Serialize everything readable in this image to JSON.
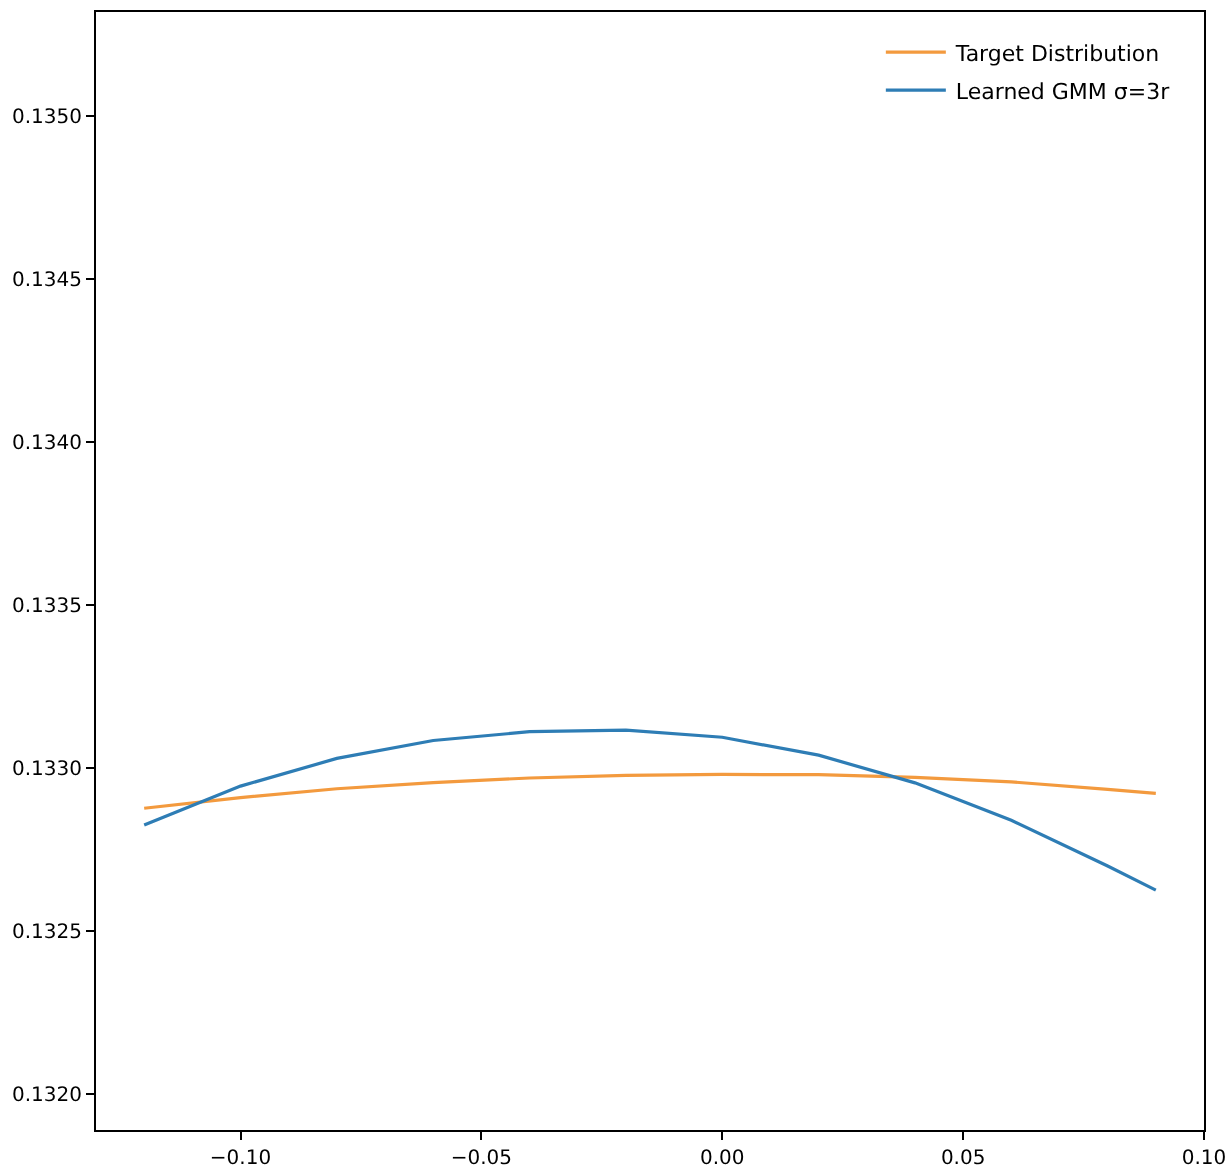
{
  "chart_data": {
    "type": "line",
    "x": [
      -0.12,
      -0.1,
      -0.08,
      -0.06,
      -0.04,
      -0.02,
      0,
      0.02,
      0.04,
      0.06,
      0.08,
      0.09
    ],
    "series": [
      {
        "name": "Target Distribution",
        "color": "#f39a3e",
        "values": [
          0.132877,
          0.13291,
          0.132937,
          0.132956,
          0.13297,
          0.132978,
          0.132981,
          0.13298,
          0.132972,
          0.132958,
          0.132935,
          0.132923
        ]
      },
      {
        "name": "Learned GMM σ=3r",
        "color": "#2e7db5",
        "values": [
          0.132826,
          0.132945,
          0.13303,
          0.133085,
          0.133112,
          0.133117,
          0.133095,
          0.13304,
          0.132955,
          0.13284,
          0.1327,
          0.132626
        ]
      }
    ],
    "xlim": [
      -0.13,
      0.1
    ],
    "xticks": [
      {
        "value": -0.1,
        "label": "−0.10"
      },
      {
        "value": -0.05,
        "label": "−0.05"
      },
      {
        "value": 0,
        "label": "0.00"
      },
      {
        "value": 0.05,
        "label": "0.05"
      },
      {
        "value": 0.1,
        "label": "0.10"
      }
    ],
    "ylim": [
      0.13189,
      0.13532
    ],
    "yticks": [
      {
        "value": 0.132,
        "label": "0.1320"
      },
      {
        "value": 0.1325,
        "label": "0.1325"
      },
      {
        "value": 0.133,
        "label": "0.1330"
      },
      {
        "value": 0.1335,
        "label": "0.1335"
      },
      {
        "value": 0.134,
        "label": "0.1340"
      },
      {
        "value": 0.1345,
        "label": "0.1345"
      },
      {
        "value": 0.135,
        "label": "0.1350"
      }
    ],
    "grid": false,
    "legend": "top right",
    "marker": "none",
    "line_style": "solid"
  }
}
